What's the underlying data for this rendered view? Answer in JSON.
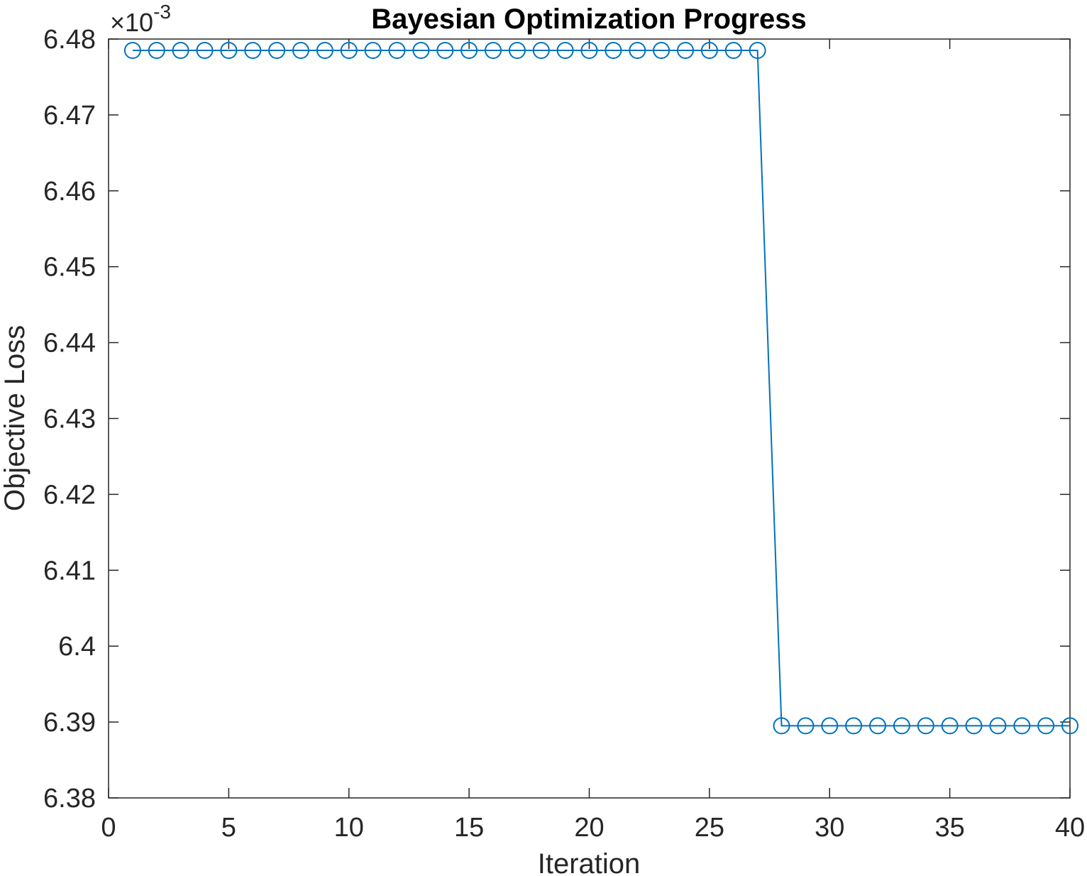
{
  "chart_data": {
    "type": "line",
    "title": "Bayesian Optimization Progress",
    "xlabel": "Iteration",
    "ylabel": "Objective Loss",
    "y_exponent_label": "×10",
    "y_exponent_power": "-3",
    "xlim": [
      0,
      40
    ],
    "ylim": [
      6.38,
      6.48
    ],
    "x_ticks": [
      0,
      5,
      10,
      15,
      20,
      25,
      30,
      35,
      40
    ],
    "x_tick_labels": [
      "0",
      "5",
      "10",
      "15",
      "20",
      "25",
      "30",
      "35",
      "40"
    ],
    "y_ticks": [
      6.38,
      6.39,
      6.4,
      6.41,
      6.42,
      6.43,
      6.44,
      6.45,
      6.46,
      6.47,
      6.48
    ],
    "y_tick_labels": [
      "6.38",
      "6.39",
      "6.4",
      "6.41",
      "6.42",
      "6.43",
      "6.44",
      "6.45",
      "6.46",
      "6.47",
      "6.48"
    ],
    "grid": false,
    "marker": "circle",
    "series_color": "#0072BD",
    "x": [
      1,
      2,
      3,
      4,
      5,
      6,
      7,
      8,
      9,
      10,
      11,
      12,
      13,
      14,
      15,
      16,
      17,
      18,
      19,
      20,
      21,
      22,
      23,
      24,
      25,
      26,
      27,
      28,
      29,
      30,
      31,
      32,
      33,
      34,
      35,
      36,
      37,
      38,
      39,
      40
    ],
    "values": [
      6.4785,
      6.4785,
      6.4785,
      6.4785,
      6.4785,
      6.4785,
      6.4785,
      6.4785,
      6.4785,
      6.4785,
      6.4785,
      6.4785,
      6.4785,
      6.4785,
      6.4785,
      6.4785,
      6.4785,
      6.4785,
      6.4785,
      6.4785,
      6.4785,
      6.4785,
      6.4785,
      6.4785,
      6.4785,
      6.4785,
      6.4785,
      6.3895,
      6.3895,
      6.3895,
      6.3895,
      6.3895,
      6.3895,
      6.3895,
      6.3895,
      6.3895,
      6.3895,
      6.3895,
      6.3895,
      6.3895
    ]
  }
}
